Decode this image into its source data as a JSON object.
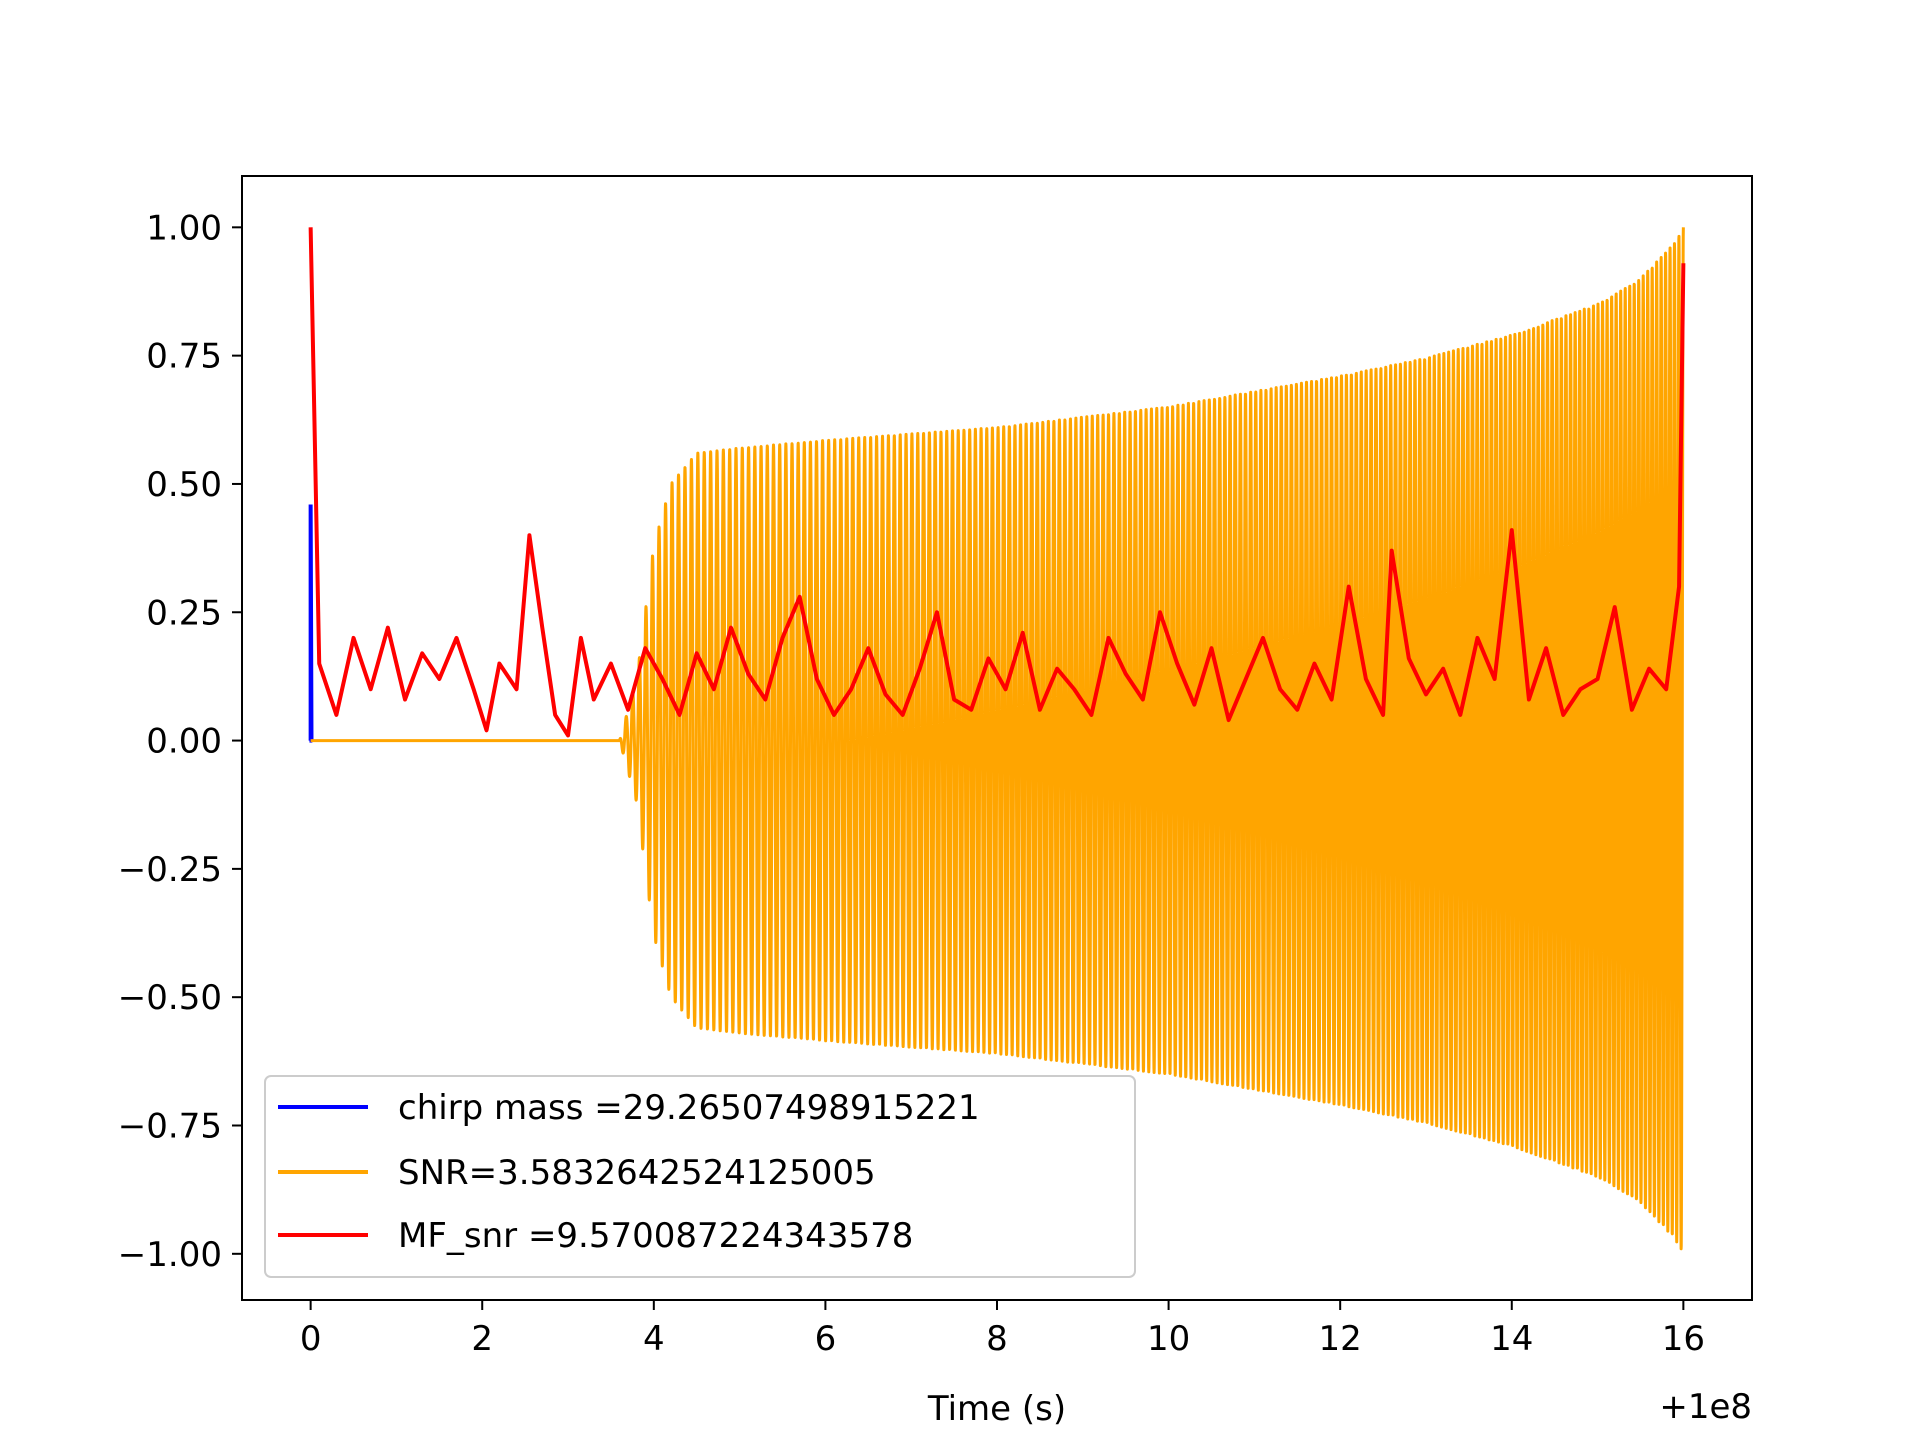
{
  "chart_data": {
    "type": "line",
    "title": "",
    "xlabel": "Time (s)",
    "ylabel": "",
    "x_offset_label": "+1e8",
    "xlim": [
      -0.8,
      16.8
    ],
    "ylim": [
      -1.09,
      1.1
    ],
    "x_ticks": [
      0,
      2,
      4,
      6,
      8,
      10,
      12,
      14,
      16
    ],
    "x_tick_labels": [
      "0",
      "2",
      "4",
      "6",
      "8",
      "10",
      "12",
      "14",
      "16"
    ],
    "y_ticks": [
      1.0,
      0.75,
      0.5,
      0.25,
      0.0,
      -0.25,
      -0.5,
      -0.75,
      -1.0
    ],
    "y_tick_labels": [
      "1.00",
      "0.75",
      "0.50",
      "0.25",
      "0.00",
      "−0.25",
      "−0.50",
      "−0.75",
      "−1.00"
    ],
    "grid": false,
    "legend_position": "lower-left",
    "series": [
      {
        "name": "chirp mass =29.26507498915221",
        "color": "#0000ff",
        "x": [
          0.0,
          0.0,
          0.01,
          0.02
        ],
        "y": [
          0.0,
          0.46,
          0.0,
          0.0
        ]
      },
      {
        "name": "SNR=3.5832642524125005",
        "color": "#ffa500",
        "envelope": {
          "t": [
            0.0,
            3.6,
            3.8,
            4.0,
            4.2,
            4.5,
            5.0,
            6.0,
            8.0,
            10.0,
            12.0,
            13.0,
            14.0,
            15.0,
            15.5,
            15.9,
            16.0
          ],
          "amp": [
            0.0,
            0.0,
            0.12,
            0.38,
            0.5,
            0.56,
            0.57,
            0.585,
            0.61,
            0.65,
            0.71,
            0.745,
            0.79,
            0.85,
            0.9,
            0.97,
            1.0
          ]
        },
        "cycles_count": 200
      },
      {
        "name": "MF_snr =9.570087224343578",
        "color": "#ff0000",
        "x": [
          0.0,
          0.1,
          0.3,
          0.5,
          0.7,
          0.9,
          1.1,
          1.3,
          1.5,
          1.7,
          1.9,
          2.05,
          2.2,
          2.4,
          2.55,
          2.7,
          2.85,
          3.0,
          3.15,
          3.3,
          3.5,
          3.7,
          3.9,
          4.1,
          4.3,
          4.5,
          4.7,
          4.9,
          5.1,
          5.3,
          5.5,
          5.7,
          5.9,
          6.1,
          6.3,
          6.5,
          6.7,
          6.9,
          7.1,
          7.3,
          7.5,
          7.7,
          7.9,
          8.1,
          8.3,
          8.5,
          8.7,
          8.9,
          9.1,
          9.3,
          9.5,
          9.7,
          9.9,
          10.1,
          10.3,
          10.5,
          10.7,
          10.9,
          11.1,
          11.3,
          11.5,
          11.7,
          11.9,
          12.1,
          12.3,
          12.5,
          12.6,
          12.8,
          13.0,
          13.2,
          13.4,
          13.6,
          13.8,
          14.0,
          14.2,
          14.4,
          14.6,
          14.8,
          15.0,
          15.2,
          15.4,
          15.6,
          15.8,
          15.95,
          16.0
        ],
        "y": [
          1.0,
          0.15,
          0.05,
          0.2,
          0.1,
          0.22,
          0.08,
          0.17,
          0.12,
          0.2,
          0.1,
          0.02,
          0.15,
          0.1,
          0.4,
          0.22,
          0.05,
          0.01,
          0.2,
          0.08,
          0.15,
          0.06,
          0.18,
          0.12,
          0.05,
          0.17,
          0.1,
          0.22,
          0.13,
          0.08,
          0.2,
          0.28,
          0.12,
          0.05,
          0.1,
          0.18,
          0.09,
          0.05,
          0.14,
          0.25,
          0.08,
          0.06,
          0.16,
          0.1,
          0.21,
          0.06,
          0.14,
          0.1,
          0.05,
          0.2,
          0.13,
          0.08,
          0.25,
          0.15,
          0.07,
          0.18,
          0.04,
          0.12,
          0.2,
          0.1,
          0.06,
          0.15,
          0.08,
          0.3,
          0.12,
          0.05,
          0.37,
          0.16,
          0.09,
          0.14,
          0.05,
          0.2,
          0.12,
          0.41,
          0.08,
          0.18,
          0.05,
          0.1,
          0.12,
          0.26,
          0.06,
          0.14,
          0.1,
          0.3,
          0.93
        ]
      }
    ]
  }
}
